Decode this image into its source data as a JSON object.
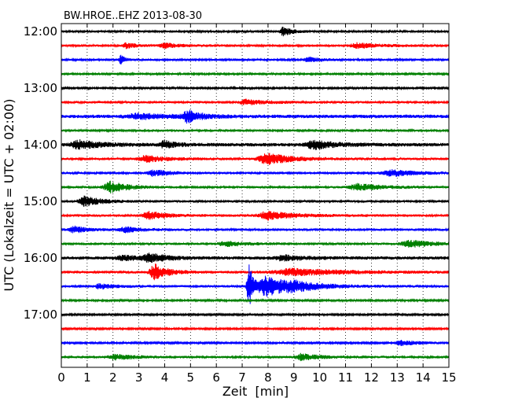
{
  "chart_data": {
    "type": "line",
    "title": "BW.HROE..EHZ 2013-08-30",
    "xlabel": "Zeit  [min]",
    "ylabel": "UTC (Lokalzeit = UTC + 02:00)",
    "xlim": [
      0,
      15
    ],
    "x_ticks": [
      0,
      1,
      2,
      3,
      4,
      5,
      6,
      7,
      8,
      9,
      10,
      11,
      12,
      13,
      14,
      15
    ],
    "x_tick_labels": [
      "0",
      "1",
      "2",
      "3",
      "4",
      "5",
      "6",
      "7",
      "8",
      "9",
      "10",
      "11",
      "12",
      "13",
      "14",
      "15"
    ],
    "y_tick_labels": [
      "12:00",
      "13:00",
      "14:00",
      "15:00",
      "16:00",
      "17:00"
    ],
    "y_tick_rows": [
      0,
      4,
      8,
      12,
      16,
      20
    ],
    "grid": "vertical-dotted",
    "colors": [
      "#000000",
      "#ff0000",
      "#0000ff",
      "#008000"
    ],
    "series": [
      {
        "row": 0,
        "color": "#000000",
        "noise": 1.3,
        "events": [
          {
            "t": 8.6,
            "amp": 6,
            "w": 0.2
          }
        ]
      },
      {
        "row": 1,
        "color": "#ff0000",
        "noise": 1.5,
        "events": [
          {
            "t": 2.5,
            "amp": 3,
            "w": 0.25
          },
          {
            "t": 4.0,
            "amp": 3,
            "w": 0.3
          },
          {
            "t": 11.5,
            "amp": 3,
            "w": 0.5
          }
        ]
      },
      {
        "row": 2,
        "color": "#0000ff",
        "noise": 1.3,
        "events": [
          {
            "t": 2.3,
            "amp": 6,
            "w": 0.1
          },
          {
            "t": 9.6,
            "amp": 3,
            "w": 0.3
          }
        ]
      },
      {
        "row": 3,
        "color": "#008000",
        "noise": 1.3,
        "events": []
      },
      {
        "row": 4,
        "color": "#000000",
        "noise": 1.2,
        "events": []
      },
      {
        "row": 5,
        "color": "#ff0000",
        "noise": 1.5,
        "events": [
          {
            "t": 7.2,
            "amp": 3,
            "w": 0.5
          }
        ]
      },
      {
        "row": 6,
        "color": "#0000ff",
        "noise": 2.2,
        "events": [
          {
            "t": 3.0,
            "amp": 3,
            "w": 0.8
          },
          {
            "t": 4.9,
            "amp": 7,
            "w": 0.3
          }
        ]
      },
      {
        "row": 7,
        "color": "#008000",
        "noise": 1.4,
        "events": []
      },
      {
        "row": 8,
        "color": "#000000",
        "noise": 2.2,
        "events": [
          {
            "t": 0.7,
            "amp": 5,
            "w": 0.5
          },
          {
            "t": 4.0,
            "amp": 5,
            "w": 0.25
          },
          {
            "t": 9.8,
            "amp": 5,
            "w": 0.5
          }
        ]
      },
      {
        "row": 9,
        "color": "#ff0000",
        "noise": 1.5,
        "events": [
          {
            "t": 3.3,
            "amp": 4,
            "w": 0.5
          },
          {
            "t": 8.0,
            "amp": 7,
            "w": 0.6
          }
        ]
      },
      {
        "row": 10,
        "color": "#0000ff",
        "noise": 1.4,
        "events": [
          {
            "t": 3.6,
            "amp": 4,
            "w": 0.4
          },
          {
            "t": 12.8,
            "amp": 4,
            "w": 0.6
          }
        ]
      },
      {
        "row": 11,
        "color": "#008000",
        "noise": 1.4,
        "events": [
          {
            "t": 1.9,
            "amp": 7,
            "w": 0.4
          },
          {
            "t": 11.5,
            "amp": 4,
            "w": 0.6
          }
        ]
      },
      {
        "row": 12,
        "color": "#000000",
        "noise": 1.5,
        "events": [
          {
            "t": 0.9,
            "amp": 6,
            "w": 0.4
          }
        ]
      },
      {
        "row": 13,
        "color": "#ff0000",
        "noise": 1.6,
        "events": [
          {
            "t": 3.4,
            "amp": 5,
            "w": 0.4
          },
          {
            "t": 8.0,
            "amp": 5,
            "w": 0.6
          }
        ]
      },
      {
        "row": 14,
        "color": "#0000ff",
        "noise": 1.5,
        "events": [
          {
            "t": 0.5,
            "amp": 4,
            "w": 0.3
          },
          {
            "t": 2.5,
            "amp": 3,
            "w": 0.4
          }
        ]
      },
      {
        "row": 15,
        "color": "#008000",
        "noise": 1.5,
        "events": [
          {
            "t": 6.4,
            "amp": 3,
            "w": 0.5
          },
          {
            "t": 13.5,
            "amp": 4,
            "w": 0.6
          }
        ]
      },
      {
        "row": 16,
        "color": "#000000",
        "noise": 2.0,
        "events": [
          {
            "t": 2.4,
            "amp": 3,
            "w": 0.4
          },
          {
            "t": 3.4,
            "amp": 5,
            "w": 0.4
          },
          {
            "t": 8.6,
            "amp": 3,
            "w": 0.5
          }
        ]
      },
      {
        "row": 17,
        "color": "#ff0000",
        "noise": 1.7,
        "events": [
          {
            "t": 3.6,
            "amp": 10,
            "w": 0.3
          },
          {
            "t": 9.0,
            "amp": 4,
            "w": 1.2
          }
        ]
      },
      {
        "row": 18,
        "color": "#0000ff",
        "noise": 1.6,
        "events": [
          {
            "t": 1.5,
            "amp": 3,
            "w": 0.3
          },
          {
            "t": 7.25,
            "amp": 30,
            "w": 0.12
          },
          {
            "t": 8.0,
            "amp": 12,
            "w": 0.6
          },
          {
            "t": 9.0,
            "amp": 4,
            "w": 0.6
          }
        ]
      },
      {
        "row": 19,
        "color": "#008000",
        "noise": 1.2,
        "events": []
      },
      {
        "row": 20,
        "color": "#000000",
        "noise": 1.0,
        "events": []
      },
      {
        "row": 21,
        "color": "#ff0000",
        "noise": 1.0,
        "events": []
      },
      {
        "row": 22,
        "color": "#0000ff",
        "noise": 1.1,
        "events": [
          {
            "t": 13.2,
            "amp": 3,
            "w": 0.5
          }
        ]
      },
      {
        "row": 23,
        "color": "#008000",
        "noise": 1.5,
        "events": [
          {
            "t": 2.1,
            "amp": 3,
            "w": 0.5
          },
          {
            "t": 9.3,
            "amp": 4,
            "w": 0.4
          }
        ]
      }
    ]
  }
}
